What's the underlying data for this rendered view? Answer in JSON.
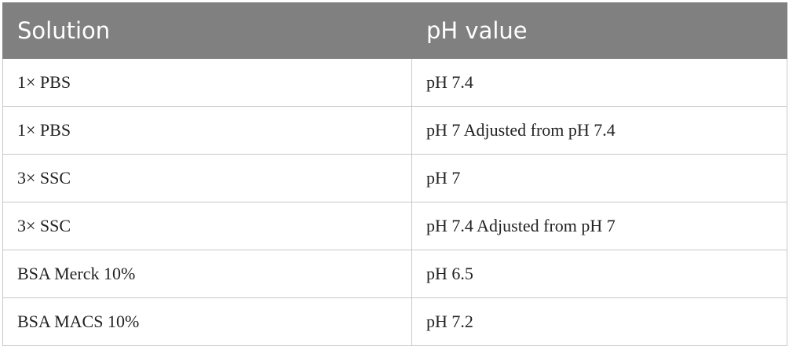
{
  "table": {
    "header": [
      "Solution",
      "pH value"
    ],
    "rows": [
      [
        "1× PBS",
        "pH 7.4"
      ],
      [
        "1× PBS",
        "pH 7 Adjusted from pH 7.4"
      ],
      [
        "3× SSC",
        "pH 7"
      ],
      [
        "3× SSC",
        "pH 7.4 Adjusted from pH 7"
      ],
      [
        "BSA Merck 10%",
        "pH 6.5"
      ],
      [
        "BSA MACS 10%",
        "pH 7.2"
      ]
    ]
  }
}
